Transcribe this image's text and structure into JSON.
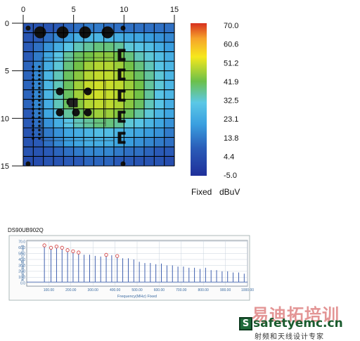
{
  "chart_data": [
    {
      "type": "heatmap",
      "x_ticks": [
        "0",
        "5",
        "10",
        "15"
      ],
      "y_ticks": [
        "0",
        "5",
        "10",
        "15"
      ],
      "xlim": [
        0,
        15
      ],
      "ylim": [
        0,
        15
      ],
      "grid": true,
      "rows": 15,
      "cols": 15,
      "colorbar": {
        "ticks": [
          "70.0",
          "60.6",
          "51.2",
          "41.9",
          "32.5",
          "23.1",
          "13.8",
          "4.4",
          "-5.0"
        ],
        "range": [
          -5.0,
          70.0
        ],
        "mode_label": "Fixed",
        "unit_label": "dBuV",
        "colors": [
          "#d7301f",
          "#f6e81c",
          "#6cc04a",
          "#5bc8e6",
          "#3aa0e0",
          "#2a5cb8",
          "#1f2f9a"
        ]
      },
      "values": [
        [
          6,
          6,
          6,
          8,
          10,
          12,
          14,
          14,
          12,
          12,
          12,
          12,
          12,
          12,
          12
        ],
        [
          6,
          8,
          12,
          16,
          20,
          24,
          26,
          26,
          26,
          24,
          22,
          22,
          20,
          18,
          16
        ],
        [
          8,
          12,
          18,
          24,
          30,
          34,
          36,
          38,
          38,
          36,
          32,
          30,
          28,
          24,
          20
        ],
        [
          8,
          14,
          22,
          30,
          36,
          40,
          42,
          44,
          44,
          42,
          38,
          34,
          32,
          28,
          24
        ],
        [
          10,
          16,
          24,
          32,
          38,
          42,
          46,
          48,
          48,
          46,
          42,
          38,
          34,
          30,
          26
        ],
        [
          10,
          16,
          26,
          34,
          40,
          44,
          48,
          50,
          50,
          48,
          44,
          40,
          36,
          32,
          26
        ],
        [
          10,
          16,
          26,
          34,
          40,
          46,
          50,
          52,
          52,
          50,
          46,
          42,
          36,
          32,
          26
        ],
        [
          10,
          16,
          26,
          34,
          40,
          46,
          50,
          52,
          52,
          50,
          46,
          42,
          36,
          30,
          26
        ],
        [
          10,
          16,
          24,
          34,
          40,
          44,
          48,
          50,
          50,
          48,
          44,
          40,
          34,
          30,
          24
        ],
        [
          8,
          14,
          22,
          30,
          36,
          40,
          44,
          46,
          46,
          44,
          40,
          36,
          32,
          26,
          22
        ],
        [
          8,
          12,
          18,
          24,
          30,
          34,
          36,
          38,
          38,
          36,
          32,
          30,
          26,
          22,
          18
        ],
        [
          6,
          10,
          14,
          18,
          22,
          24,
          26,
          28,
          28,
          26,
          24,
          22,
          20,
          18,
          14
        ],
        [
          6,
          8,
          12,
          16,
          20,
          22,
          24,
          24,
          24,
          22,
          20,
          18,
          16,
          14,
          12
        ],
        [
          6,
          6,
          8,
          10,
          12,
          14,
          16,
          16,
          16,
          14,
          12,
          12,
          10,
          8,
          8
        ],
        [
          4,
          4,
          6,
          6,
          8,
          8,
          10,
          10,
          10,
          8,
          8,
          6,
          6,
          6,
          4
        ]
      ]
    },
    {
      "type": "line",
      "title": "DS90UB902Q",
      "ylabel": "Amplitude(dBuV) Fixed",
      "xlabel": "Frequency(MHz) Fixed",
      "x_ticks": [
        "100.00",
        "200.00",
        "300.00",
        "400.00",
        "500.00",
        "600.00",
        "700.00",
        "800.00",
        "900.00",
        "1000.00"
      ],
      "y_ticks": [
        "70.0",
        "60.0",
        "50.0",
        "40.0",
        "30.0",
        "20.0",
        "10.0",
        "0.0"
      ],
      "xlim": [
        0,
        1000
      ],
      "ylim": [
        -5,
        72
      ],
      "grid": true,
      "series": [
        {
          "color": "#2b4fa6",
          "x": [
            80,
            110,
            135,
            160,
            185,
            210,
            235,
            260,
            285,
            310,
            335,
            360,
            385,
            410,
            435,
            460,
            485,
            510,
            535,
            560,
            585,
            610,
            635,
            660,
            685,
            710,
            735,
            760,
            785,
            810,
            835,
            860,
            885,
            910,
            935,
            960,
            985
          ],
          "values": [
            62,
            58,
            60,
            58,
            54,
            52,
            50,
            48,
            48,
            46,
            45,
            46,
            47,
            44,
            42,
            42,
            40,
            36,
            34,
            34,
            32,
            33,
            30,
            30,
            28,
            28,
            26,
            26,
            24,
            26,
            22,
            22,
            20,
            20,
            18,
            18,
            16
          ]
        }
      ],
      "markers": {
        "color": "#d64a4a",
        "x": [
          80,
          110,
          135,
          160,
          185,
          210,
          235,
          360,
          410
        ],
        "values": [
          62,
          58,
          60,
          58,
          54,
          52,
          50,
          46,
          44
        ]
      }
    }
  ],
  "watermark": {
    "logo_letter": "S",
    "chinese_top": "易迪拓培训",
    "site": "safetyemc.cn",
    "chinese_bottom": "射频和天线设计专家"
  }
}
